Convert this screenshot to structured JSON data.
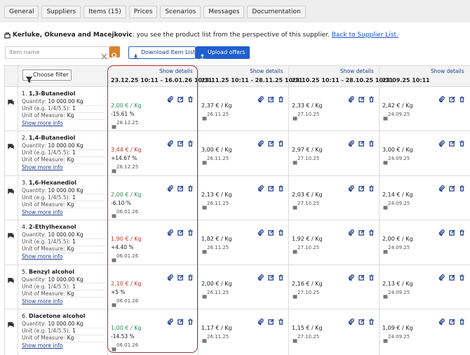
{
  "tabs": [
    "General",
    "Suppliers",
    "Items (15)",
    "Prices",
    "Scenarios",
    "Messages",
    "Documentation"
  ],
  "supplier_line": {
    "name": "Kerluke, Okuneva and Macejkovic",
    "text": ": you see the product list from the perspective of this supplier.",
    "link": "Back to Supplier List."
  },
  "toolbar": {
    "search_placeholder": "Item name",
    "download": "Download Item List",
    "upload": "Upload offers",
    "filter": "Choose filter"
  },
  "labels": {
    "quantity": "Quantity:",
    "unit": "Unit (e.g. 1/4/5.5):",
    "uom": "Unit of Measure:",
    "show_more": "Show more info",
    "show_details": "Show details"
  },
  "columns": [
    "23.12.25 10:11 - 16.01.26 10:11",
    "23.11.25 10:11 - 28.11.25 10:11",
    "23.10.25 10:11 - 28.10.25 10:11",
    "23.09.25 10:11"
  ],
  "rows": [
    {
      "number": "1.",
      "name": "1,3-Butanediol",
      "quantity": "10 000.00 Kg",
      "unit": "1",
      "uom": "Kg",
      "cells": [
        {
          "price": "2,00 € / Kg",
          "color": "#2e8b57",
          "change": "-15.61 %",
          "date": "28.12.25"
        },
        {
          "price": "2,37 € / Kg",
          "date": "26.11.25"
        },
        {
          "price": "2,33 € / Kg",
          "date": "27.10.25"
        },
        {
          "price": "2,42 € / Kg",
          "date": "24.09.25"
        }
      ]
    },
    {
      "number": "2.",
      "name": "1,4-Butanediol",
      "quantity": "10 000.00 Kg",
      "unit": "1",
      "uom": "Kg",
      "cells": [
        {
          "price": "3,44 € / Kg",
          "color": "#c0392b",
          "change": "+14.67 %",
          "date": "28.12.25"
        },
        {
          "price": "3,00 € / Kg",
          "date": "26.11.25"
        },
        {
          "price": "2,97 € / Kg",
          "date": "27.10.25"
        },
        {
          "price": "3,00 € / Kg",
          "date": "24.09.25"
        }
      ]
    },
    {
      "number": "3.",
      "name": "1,6-Hexanediol",
      "quantity": "10 000.00 Kg",
      "unit": "1",
      "uom": "Kg",
      "cells": [
        {
          "price": "2,00 € / Kg",
          "color": "#2e8b57",
          "change": "-6.10 %",
          "date": "06.01.26"
        },
        {
          "price": "2,13 € / Kg",
          "date": "26.11.25"
        },
        {
          "price": "2,03 € / Kg",
          "date": "27.10.25"
        },
        {
          "price": "2,14 € / Kg",
          "date": "24.09.25"
        }
      ]
    },
    {
      "number": "4.",
      "name": "2-Ethylhexanol",
      "quantity": "10 000.00 Kg",
      "unit": "1",
      "uom": "Kg",
      "cells": [
        {
          "price": "1,90 € / Kg",
          "color": "#c0392b",
          "change": "+4.40 %",
          "date": "06.01.26"
        },
        {
          "price": "1,82 € / Kg",
          "date": "26.11.25"
        },
        {
          "price": "1,92 € / Kg",
          "date": "27.10.25"
        },
        {
          "price": "2,00 € / Kg",
          "date": "24.09.25"
        }
      ]
    },
    {
      "number": "5.",
      "name": "Benzyl alcohol",
      "quantity": "10 000.00 Kg",
      "unit": "1",
      "uom": "Kg",
      "cells": [
        {
          "price": "2,10 € / Kg",
          "color": "#c0392b",
          "change": "+5 %",
          "date": "06.01.26"
        },
        {
          "price": "2,00 € / Kg",
          "date": "26.11.25"
        },
        {
          "price": "2,16 € / Kg",
          "date": "27.10.25"
        },
        {
          "price": "2,13 € / Kg",
          "date": "24.09.25"
        }
      ]
    },
    {
      "number": "6.",
      "name": "Diacetone alcohol",
      "quantity": "10 000.00 Kg",
      "unit": "1",
      "uom": "Kg",
      "cells": [
        {
          "price": "1,00 € / Kg",
          "color": "#2e8b57",
          "change": "-14.53 %",
          "date": "06.01.26"
        },
        {
          "price": "1,17 € / Kg",
          "date": "26.11.25"
        },
        {
          "price": "1,15 € / Kg",
          "date": "27.10.25"
        },
        {
          "price": "1,09 € / Kg",
          "date": "24.09.25"
        }
      ]
    }
  ]
}
